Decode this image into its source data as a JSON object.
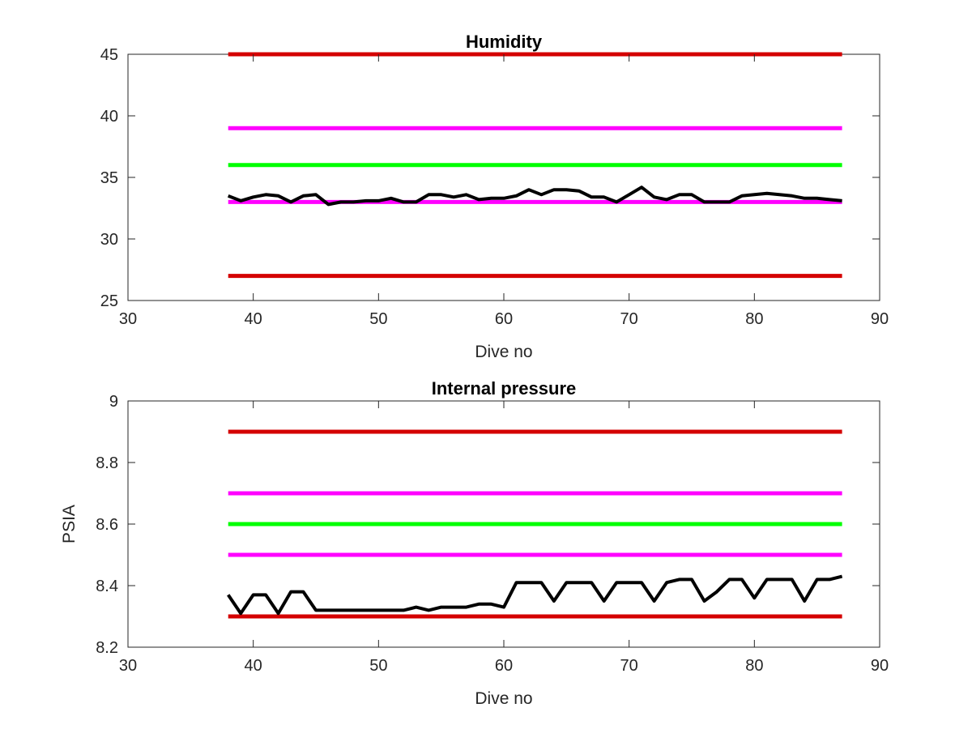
{
  "chart_data": [
    {
      "type": "line",
      "title": "Humidity",
      "xlabel": "Dive no",
      "ylabel": "",
      "xlim": [
        30,
        90
      ],
      "ylim": [
        25,
        45
      ],
      "xticks": [
        30,
        40,
        50,
        60,
        70,
        80,
        90
      ],
      "yticks": [
        25,
        30,
        35,
        40,
        45
      ],
      "xtick_labels": [
        "30",
        "40",
        "50",
        "60",
        "70",
        "80",
        "90"
      ],
      "ytick_labels": [
        "25",
        "30",
        "35",
        "40",
        "45"
      ],
      "grid": false,
      "colors": {
        "red": "#d40000",
        "magenta": "#ff00ff",
        "green": "#00ff00",
        "data": "#000000"
      },
      "thresholds": [
        {
          "y": 45,
          "x": [
            38,
            87
          ],
          "color": "red"
        },
        {
          "y": 39,
          "x": [
            38,
            87
          ],
          "color": "magenta"
        },
        {
          "y": 36,
          "x": [
            38,
            87
          ],
          "color": "green"
        },
        {
          "y": 33,
          "x": [
            38,
            87
          ],
          "color": "magenta"
        },
        {
          "y": 27,
          "x": [
            38,
            87
          ],
          "color": "red"
        }
      ],
      "series": [
        {
          "x": [
            38,
            39,
            40,
            41,
            42,
            43,
            44,
            45,
            46,
            47,
            48,
            49,
            50,
            51,
            52,
            53,
            54,
            55,
            56,
            57,
            58,
            59,
            60,
            61,
            62,
            63,
            64,
            65,
            66,
            67,
            68,
            69,
            70,
            71,
            72,
            73,
            74,
            75,
            76,
            77,
            78,
            79,
            80,
            81,
            82,
            83,
            84,
            85,
            86,
            87
          ],
          "y": [
            33.5,
            33.1,
            33.4,
            33.6,
            33.5,
            33.0,
            33.5,
            33.6,
            32.8,
            33.0,
            33.0,
            33.1,
            33.1,
            33.3,
            33.0,
            33.0,
            33.6,
            33.6,
            33.4,
            33.6,
            33.2,
            33.3,
            33.3,
            33.5,
            34.0,
            33.6,
            34.0,
            34.0,
            33.9,
            33.4,
            33.4,
            33.0,
            33.6,
            34.2,
            33.4,
            33.2,
            33.6,
            33.6,
            33.0,
            33.0,
            33.0,
            33.5,
            33.6,
            33.7,
            33.6,
            33.5,
            33.3,
            33.3,
            33.2,
            33.1
          ],
          "color": "data"
        }
      ]
    },
    {
      "type": "line",
      "title": "Internal pressure",
      "xlabel": "Dive no",
      "ylabel": "PSIA",
      "xlim": [
        30,
        90
      ],
      "ylim": [
        8.2,
        9
      ],
      "xticks": [
        30,
        40,
        50,
        60,
        70,
        80,
        90
      ],
      "yticks": [
        8.2,
        8.4,
        8.6,
        8.8,
        9
      ],
      "xtick_labels": [
        "30",
        "40",
        "50",
        "60",
        "70",
        "80",
        "90"
      ],
      "ytick_labels": [
        "8.2",
        "8.4",
        "8.6",
        "8.8",
        "9"
      ],
      "grid": false,
      "colors": {
        "red": "#d40000",
        "magenta": "#ff00ff",
        "green": "#00ff00",
        "data": "#000000"
      },
      "thresholds": [
        {
          "y": 8.9,
          "x": [
            38,
            87
          ],
          "color": "red"
        },
        {
          "y": 8.7,
          "x": [
            38,
            87
          ],
          "color": "magenta"
        },
        {
          "y": 8.6,
          "x": [
            38,
            87
          ],
          "color": "green"
        },
        {
          "y": 8.5,
          "x": [
            38,
            87
          ],
          "color": "magenta"
        },
        {
          "y": 8.3,
          "x": [
            38,
            87
          ],
          "color": "red"
        }
      ],
      "series": [
        {
          "x": [
            38,
            39,
            40,
            41,
            42,
            43,
            44,
            45,
            46,
            47,
            48,
            49,
            50,
            51,
            52,
            53,
            54,
            55,
            56,
            57,
            58,
            59,
            60,
            61,
            62,
            63,
            64,
            65,
            66,
            67,
            68,
            69,
            70,
            71,
            72,
            73,
            74,
            75,
            76,
            77,
            78,
            79,
            80,
            81,
            82,
            83,
            84,
            85,
            86,
            87
          ],
          "y": [
            8.37,
            8.31,
            8.37,
            8.37,
            8.31,
            8.38,
            8.38,
            8.32,
            8.32,
            8.32,
            8.32,
            8.32,
            8.32,
            8.32,
            8.32,
            8.33,
            8.32,
            8.33,
            8.33,
            8.33,
            8.34,
            8.34,
            8.33,
            8.41,
            8.41,
            8.41,
            8.35,
            8.41,
            8.41,
            8.41,
            8.35,
            8.41,
            8.41,
            8.41,
            8.35,
            8.41,
            8.42,
            8.42,
            8.35,
            8.38,
            8.42,
            8.42,
            8.36,
            8.42,
            8.42,
            8.42,
            8.35,
            8.42,
            8.42,
            8.43
          ],
          "color": "data"
        }
      ]
    }
  ]
}
